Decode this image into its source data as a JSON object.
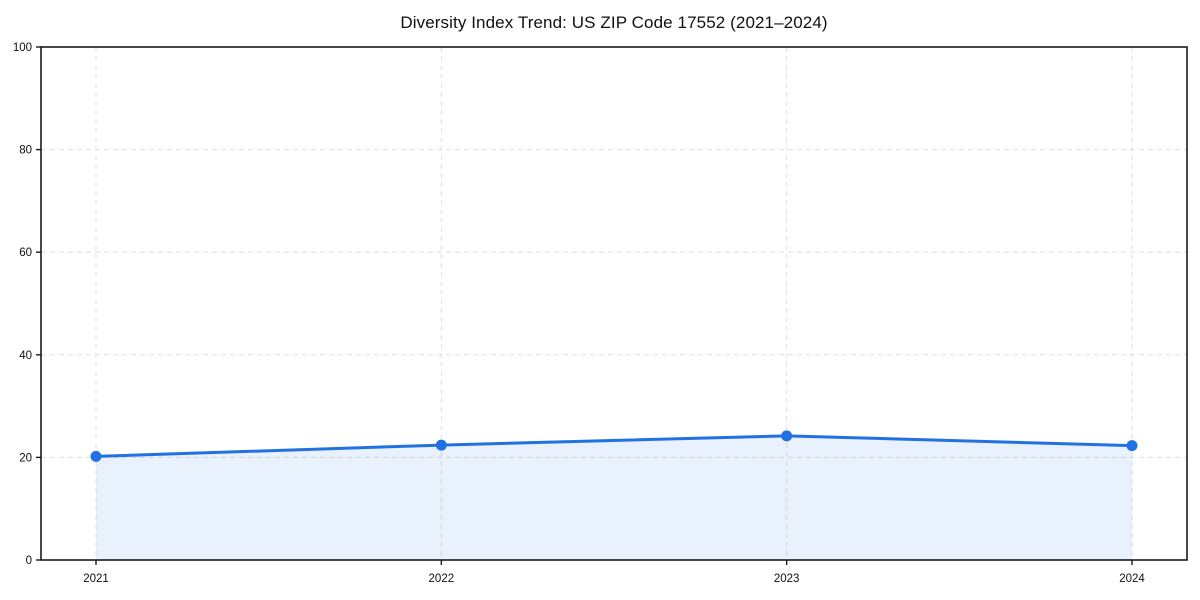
{
  "title": "Diversity Index Trend: US ZIP Code 17552 (2021–2024)",
  "chart_data": {
    "type": "area",
    "title": "Diversity Index Trend: US ZIP Code 17552 (2021–2024)",
    "categories": [
      "2021",
      "2022",
      "2023",
      "2024"
    ],
    "series": [
      {
        "name": "Diversity Index",
        "values": [
          20.2,
          22.4,
          24.2,
          22.3
        ]
      }
    ],
    "xlabel": "",
    "ylabel": "",
    "ylim": [
      0,
      100
    ],
    "yticks": [
      0,
      20,
      40,
      60,
      80,
      100
    ],
    "grid": "dashed",
    "legend": "none",
    "colors": {
      "line": "#2271e3",
      "marker": "#2271e3",
      "fill": "#2271e3",
      "fill_opacity": "0.10",
      "grid": "#dedede",
      "spine": "#1a1a1a",
      "text": "#111111",
      "background": "#ffffff"
    }
  }
}
